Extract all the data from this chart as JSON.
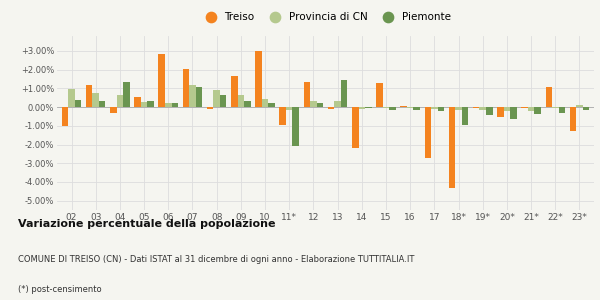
{
  "categories": [
    "02",
    "03",
    "04",
    "05",
    "06",
    "07",
    "08",
    "09",
    "10",
    "11*",
    "12",
    "13",
    "14",
    "15",
    "16",
    "17",
    "18*",
    "19*",
    "20*",
    "21*",
    "22*",
    "23*"
  ],
  "treiso": [
    -1.0,
    1.2,
    -0.3,
    0.55,
    2.85,
    2.05,
    -0.1,
    1.65,
    3.0,
    -0.95,
    1.35,
    -0.12,
    -2.2,
    1.3,
    0.07,
    -2.7,
    -4.3,
    -0.07,
    -0.55,
    -0.07,
    1.05,
    -1.3
  ],
  "provincia": [
    0.95,
    0.75,
    0.65,
    0.25,
    0.2,
    1.2,
    0.9,
    0.65,
    0.45,
    -0.15,
    0.35,
    0.35,
    -0.1,
    -0.05,
    -0.05,
    -0.1,
    -0.15,
    -0.15,
    -0.2,
    -0.2,
    -0.05,
    0.12
  ],
  "piemonte": [
    0.4,
    0.35,
    1.35,
    0.3,
    0.2,
    1.05,
    0.65,
    0.3,
    0.2,
    -2.1,
    0.2,
    1.45,
    -0.05,
    -0.15,
    -0.15,
    -0.2,
    -0.95,
    -0.4,
    -0.65,
    -0.35,
    -0.3,
    -0.18
  ],
  "treiso_color": "#f4831f",
  "provincia_color": "#b5c98e",
  "piemonte_color": "#6a9550",
  "bg_color": "#f5f5f0",
  "grid_color": "#dddddd",
  "ylim_min": -5.5,
  "ylim_max": 3.8,
  "yticks": [
    -5.0,
    -4.0,
    -3.0,
    -2.0,
    -1.0,
    0.0,
    1.0,
    2.0,
    3.0
  ],
  "ytick_labels": [
    "-5.00%",
    "-4.00%",
    "-3.00%",
    "-2.00%",
    "-1.00%",
    "0.00%",
    "+1.00%",
    "+2.00%",
    "+3.00%"
  ],
  "legend_labels": [
    "Treiso",
    "Provincia di CN",
    "Piemonte"
  ],
  "title": "Variazione percentuale della popolazione",
  "subtitle": "COMUNE DI TREISO (CN) - Dati ISTAT al 31 dicembre di ogni anno - Elaborazione TUTTITALIA.IT",
  "footnote": "(*) post-censimento"
}
